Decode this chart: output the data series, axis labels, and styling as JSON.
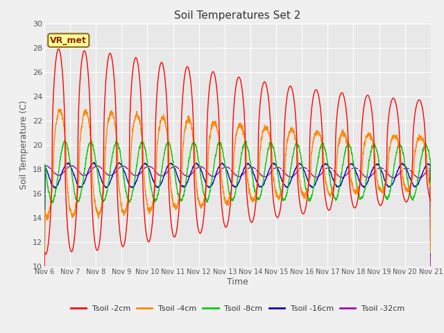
{
  "title": "Soil Temperatures Set 2",
  "xlabel": "Time",
  "ylabel": "Soil Temperature (C)",
  "ylim": [
    10,
    30
  ],
  "yticks": [
    10,
    12,
    14,
    16,
    18,
    20,
    22,
    24,
    26,
    28,
    30
  ],
  "xtick_labels": [
    "Nov 6",
    "Nov 7",
    "Nov 8",
    "Nov 9",
    "Nov 10",
    "Nov 11",
    "Nov 12",
    "Nov 13",
    "Nov 14",
    "Nov 15",
    "Nov 16",
    "Nov 17",
    "Nov 18",
    "Nov 19",
    "Nov 20",
    "Nov 21"
  ],
  "series_colors": [
    "#ff0000",
    "#ff8800",
    "#00cc00",
    "#0000cc",
    "#aa00aa"
  ],
  "series_labels": [
    "Tsoil -2cm",
    "Tsoil -4cm",
    "Tsoil -8cm",
    "Tsoil -16cm",
    "Tsoil -32cm"
  ],
  "plot_bg_color": "#e8e8e8",
  "fig_bg_color": "#f0f0f0",
  "annotation_text": "VR_met",
  "annotation_fg": "#8B2500",
  "annotation_bg": "#ffff99",
  "annotation_border": "#8B6914",
  "line_width": 1.0,
  "n_days": 15,
  "ppd": 288,
  "peak_amps": [
    8.5,
    8.3,
    8.2,
    7.9,
    7.5,
    7.1,
    6.8,
    6.3,
    5.9,
    5.5,
    5.2,
    4.9,
    4.7,
    4.5,
    4.2
  ],
  "red_base": 19.5,
  "orange_base": 18.5,
  "green_base": 17.8,
  "blue_base": 17.5,
  "purple_base": 17.9
}
